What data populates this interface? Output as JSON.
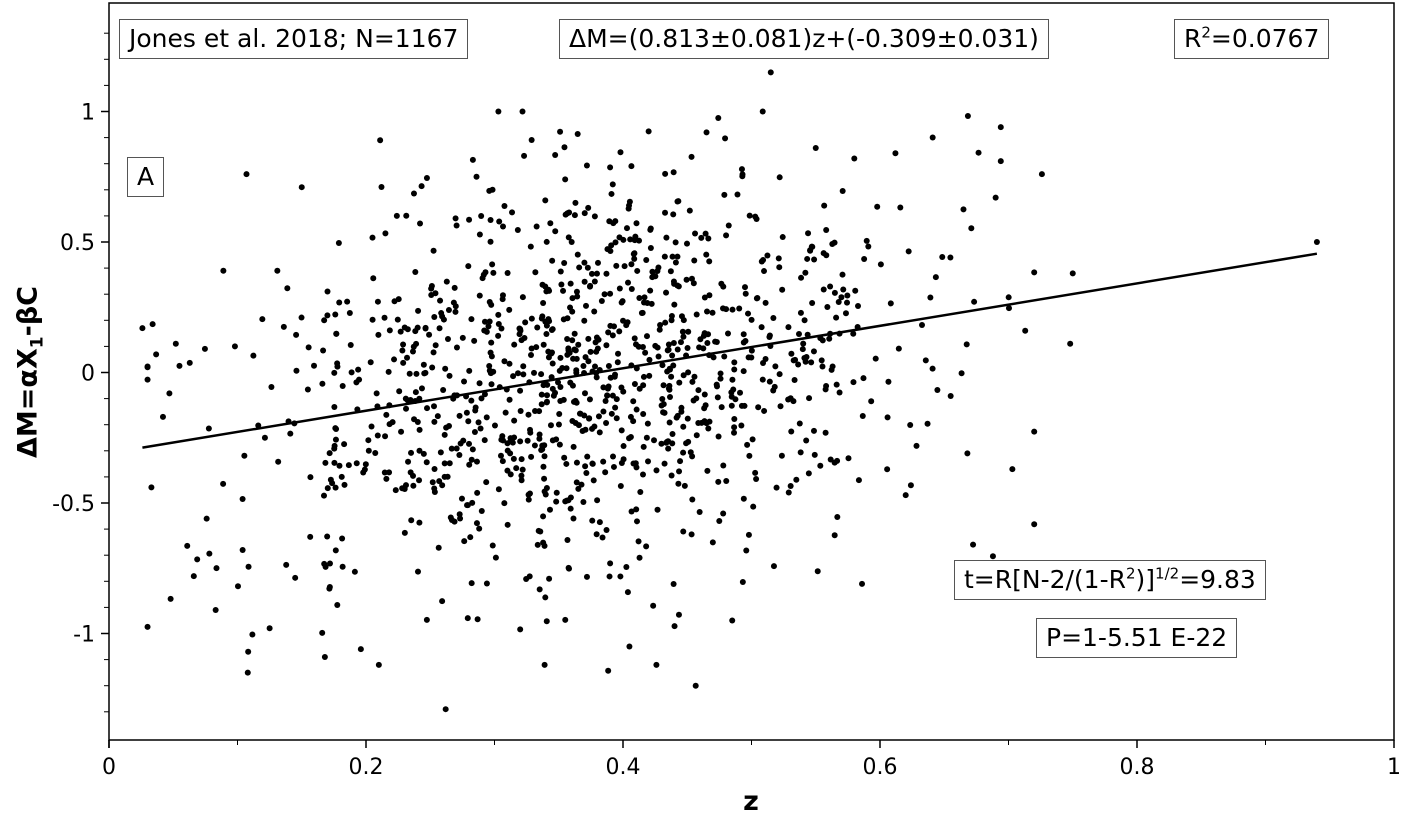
{
  "chart_data": {
    "type": "scatter",
    "title": "",
    "xlabel": "z",
    "ylabel_parts": {
      "pre": "ΔM=αX",
      "sub": "1",
      "post": "-βC"
    },
    "xlim": [
      0,
      1
    ],
    "ylim": [
      -1.4,
      1.4
    ],
    "x_ticks": [
      "0",
      "0.2",
      "0.4",
      "0.6",
      "0.8",
      "1"
    ],
    "y_ticks": [
      "1",
      "0.5",
      "0",
      "-0.5",
      "-1"
    ],
    "grid": false,
    "fit_line": {
      "slope": 0.813,
      "intercept": -0.309,
      "x_range": [
        0.026,
        0.94
      ]
    },
    "point_count_shown": 1167,
    "sample_points": [
      [
        0.026,
        0.17
      ],
      [
        0.03,
        0.02
      ],
      [
        0.033,
        -0.44
      ],
      [
        0.042,
        -0.17
      ],
      [
        0.047,
        -0.08
      ],
      [
        0.052,
        0.11
      ],
      [
        0.066,
        -0.78
      ],
      [
        0.076,
        -0.56
      ],
      [
        0.083,
        -0.91
      ],
      [
        0.089,
        0.39
      ],
      [
        0.098,
        0.1
      ],
      [
        0.104,
        -0.68
      ],
      [
        0.107,
        0.76
      ],
      [
        0.108,
        -1.15
      ],
      [
        0.125,
        -0.98
      ],
      [
        0.131,
        0.39
      ],
      [
        0.15,
        0.71
      ],
      [
        0.168,
        -1.09
      ],
      [
        0.196,
        -1.06
      ],
      [
        0.21,
        -1.12
      ],
      [
        0.211,
        0.89
      ],
      [
        0.224,
        0.6
      ],
      [
        0.262,
        -1.29
      ],
      [
        0.286,
        0.75
      ],
      [
        0.323,
        0.83
      ],
      [
        0.339,
        -1.12
      ],
      [
        0.355,
        0.74
      ],
      [
        0.394,
        0.58
      ],
      [
        0.405,
        -1.05
      ],
      [
        0.426,
        -1.12
      ],
      [
        0.452,
        0.62
      ],
      [
        0.465,
        0.92
      ],
      [
        0.485,
        -0.95
      ],
      [
        0.515,
        1.15
      ],
      [
        0.55,
        0.86
      ],
      [
        0.58,
        0.82
      ],
      [
        0.586,
        -0.81
      ],
      [
        0.612,
        0.84
      ],
      [
        0.62,
        -0.47
      ],
      [
        0.655,
        -0.09
      ],
      [
        0.668,
        -0.31
      ],
      [
        0.69,
        0.67
      ],
      [
        0.694,
        0.94
      ],
      [
        0.694,
        0.81
      ],
      [
        0.703,
        -0.37
      ],
      [
        0.713,
        0.16
      ],
      [
        0.726,
        0.76
      ],
      [
        0.748,
        0.11
      ],
      [
        0.75,
        0.38
      ],
      [
        0.94,
        0.5
      ]
    ],
    "cloud": {
      "count": 1117,
      "x_mean": 0.37,
      "x_sd": 0.13,
      "y_sd": 0.38,
      "seed": 2018
    }
  },
  "annotations": {
    "source": "Jones et al. 2018; N=1167",
    "equation": "ΔM=(0.813±0.081)z+(-0.309±0.031)",
    "r2_pre": "R",
    "r2_sup": "2",
    "r2_post": "=0.0767",
    "panel": "A",
    "t_pre": "t=R[N-2/(1-R",
    "t_sup1": "2",
    "t_mid": ")]",
    "t_sup2": "1/2",
    "t_post": "=9.83",
    "p_value": "P=1-5.51 E-22"
  }
}
